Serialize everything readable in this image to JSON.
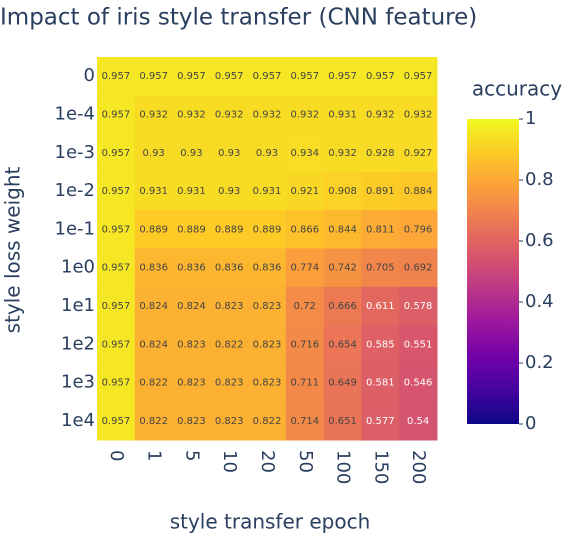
{
  "chart_data": {
    "type": "heatmap",
    "title": "Impact of iris style transfer (CNN feature)",
    "x_label": "style transfer epoch",
    "y_label": "style loss weight",
    "x": [
      "0",
      "1",
      "5",
      "10",
      "20",
      "50",
      "100",
      "150",
      "200"
    ],
    "y": [
      "0",
      "1e-4",
      "1e-3",
      "1e-2",
      "1e-1",
      "1e0",
      "1e1",
      "1e2",
      "1e3",
      "1e4"
    ],
    "z": [
      [
        0.957,
        0.957,
        0.957,
        0.957,
        0.957,
        0.957,
        0.957,
        0.957,
        0.957
      ],
      [
        0.957,
        0.932,
        0.932,
        0.932,
        0.932,
        0.932,
        0.931,
        0.932,
        0.932
      ],
      [
        0.957,
        0.93,
        0.93,
        0.93,
        0.93,
        0.934,
        0.932,
        0.928,
        0.927
      ],
      [
        0.957,
        0.931,
        0.931,
        0.93,
        0.931,
        0.921,
        0.908,
        0.891,
        0.884
      ],
      [
        0.957,
        0.889,
        0.889,
        0.889,
        0.889,
        0.866,
        0.844,
        0.811,
        0.796
      ],
      [
        0.957,
        0.836,
        0.836,
        0.836,
        0.836,
        0.774,
        0.742,
        0.705,
        0.692
      ],
      [
        0.957,
        0.824,
        0.824,
        0.823,
        0.823,
        0.72,
        0.666,
        0.611,
        0.578
      ],
      [
        0.957,
        0.824,
        0.823,
        0.822,
        0.823,
        0.716,
        0.654,
        0.585,
        0.551
      ],
      [
        0.957,
        0.822,
        0.823,
        0.823,
        0.823,
        0.711,
        0.649,
        0.581,
        0.546
      ],
      [
        0.957,
        0.822,
        0.823,
        0.823,
        0.822,
        0.714,
        0.651,
        0.577,
        0.54
      ]
    ],
    "colorbar_title": "accuracy",
    "zlim": [
      0,
      1
    ],
    "colorbar_ticks": [
      0,
      0.2,
      0.4,
      0.6,
      0.8,
      1
    ],
    "colorscale": [
      "#0d0887",
      "#46039f",
      "#7201a8",
      "#9c179e",
      "#bd3786",
      "#d8576b",
      "#ed7953",
      "#fb9f3a",
      "#fdca26",
      "#f0f921"
    ]
  }
}
